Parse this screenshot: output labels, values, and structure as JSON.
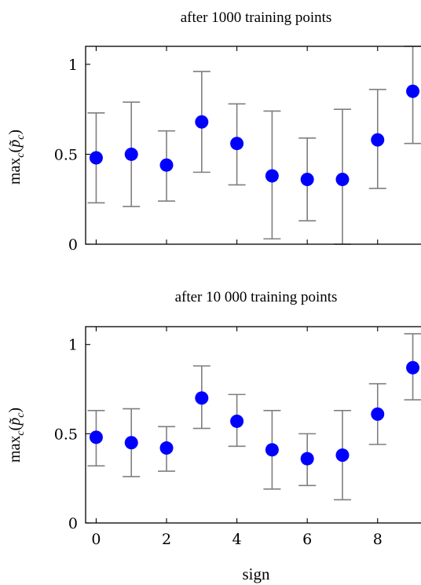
{
  "colors": {
    "marker": "#0000ff",
    "errorbar": "#7f7f7f",
    "axis": "#000000"
  },
  "chart_data": [
    {
      "type": "scatter",
      "title": "after 1000 training points",
      "ylabel": "max_c(p̃_c)",
      "ylabel_parts": {
        "main": "max",
        "sub": "c",
        "arg_open": "(",
        "arg_p": "p̃",
        "arg_sub": "c",
        "arg_close": ")"
      },
      "xlabel": "",
      "x": [
        0,
        1,
        2,
        3,
        4,
        5,
        6,
        7,
        8,
        9
      ],
      "y": [
        0.48,
        0.5,
        0.44,
        0.68,
        0.56,
        0.38,
        0.36,
        0.36,
        0.58,
        0.85
      ],
      "err_low": [
        0.23,
        0.21,
        0.24,
        0.4,
        0.33,
        0.03,
        0.13,
        0.0,
        0.31,
        0.56
      ],
      "err_high": [
        0.73,
        0.79,
        0.63,
        0.96,
        0.78,
        0.74,
        0.59,
        0.75,
        0.86,
        1.1
      ],
      "xlim": [
        -0.3,
        9.3
      ],
      "ylim": [
        0,
        1.1
      ],
      "yticks": [
        0,
        0.5,
        1
      ],
      "ytick_labels": [
        "0",
        "0.5",
        "1"
      ],
      "xticks": [
        0,
        2,
        4,
        6,
        8
      ],
      "xtick_labels": [],
      "grid": false
    },
    {
      "type": "scatter",
      "title": "after 10 000 training points",
      "ylabel": "max_c(p̃_c)",
      "ylabel_parts": {
        "main": "max",
        "sub": "c",
        "arg_open": "(",
        "arg_p": "p̃",
        "arg_sub": "c",
        "arg_close": ")"
      },
      "xlabel": "sign",
      "x": [
        0,
        1,
        2,
        3,
        4,
        5,
        6,
        7,
        8,
        9
      ],
      "y": [
        0.48,
        0.45,
        0.42,
        0.7,
        0.57,
        0.41,
        0.36,
        0.38,
        0.61,
        0.87
      ],
      "err_low": [
        0.32,
        0.26,
        0.29,
        0.53,
        0.43,
        0.19,
        0.21,
        0.13,
        0.44,
        0.69
      ],
      "err_high": [
        0.63,
        0.64,
        0.54,
        0.88,
        0.72,
        0.63,
        0.5,
        0.63,
        0.78,
        1.06
      ],
      "xlim": [
        -0.3,
        9.3
      ],
      "ylim": [
        0,
        1.1
      ],
      "yticks": [
        0,
        0.5,
        1
      ],
      "ytick_labels": [
        "0",
        "0.5",
        "1"
      ],
      "xticks": [
        0,
        2,
        4,
        6,
        8
      ],
      "xtick_labels": [
        "0",
        "2",
        "4",
        "6",
        "8"
      ],
      "grid": false
    }
  ]
}
